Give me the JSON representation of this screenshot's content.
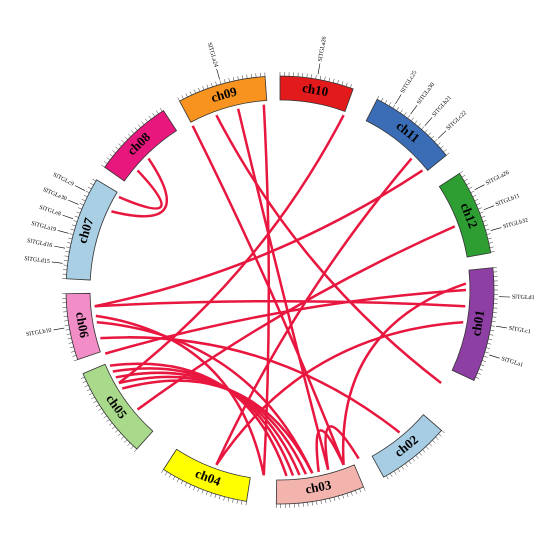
{
  "nodes": [
    {
      "label": "ch01",
      "color": "#8e3fa3",
      "genes": [
        "SlTGLd1",
        "SlTGLc1",
        "SlTGLa1"
      ]
    },
    {
      "label": "ch02",
      "color": "#a6cde3",
      "genes": []
    },
    {
      "label": "ch03",
      "color": "#f4b4ae",
      "genes": []
    },
    {
      "label": "ch04",
      "color": "#ffff00",
      "genes": []
    },
    {
      "label": "ch05",
      "color": "#a9d98b",
      "genes": []
    },
    {
      "label": "ch06",
      "color": "#f28dc8",
      "genes": [
        "SlTGLb10"
      ]
    },
    {
      "label": "ch07",
      "color": "#a9cfe4",
      "genes": [
        "SlTGLd15",
        "SlTGLd16",
        "SlTGLa19",
        "SlTGLe8",
        "SlTGLe30",
        "SlTGLc9"
      ]
    },
    {
      "label": "ch08",
      "color": "#e8177d",
      "genes": []
    },
    {
      "label": "ch09",
      "color": "#f7931e",
      "genes": [
        "SlTGLa24"
      ]
    },
    {
      "label": "ch10",
      "color": "#e31a1c",
      "genes": [
        "SlTGLa26"
      ]
    },
    {
      "label": "ch11",
      "color": "#3a6db5",
      "genes": [
        "SlTGLc25",
        "SlTGLa30",
        "SlTGLb21",
        "SlTGLc22"
      ]
    },
    {
      "label": "ch12",
      "color": "#2e9e33",
      "genes": [
        "SlTGLa26",
        "SlTGLb11",
        "SlTGLb32"
      ]
    }
  ]
}
